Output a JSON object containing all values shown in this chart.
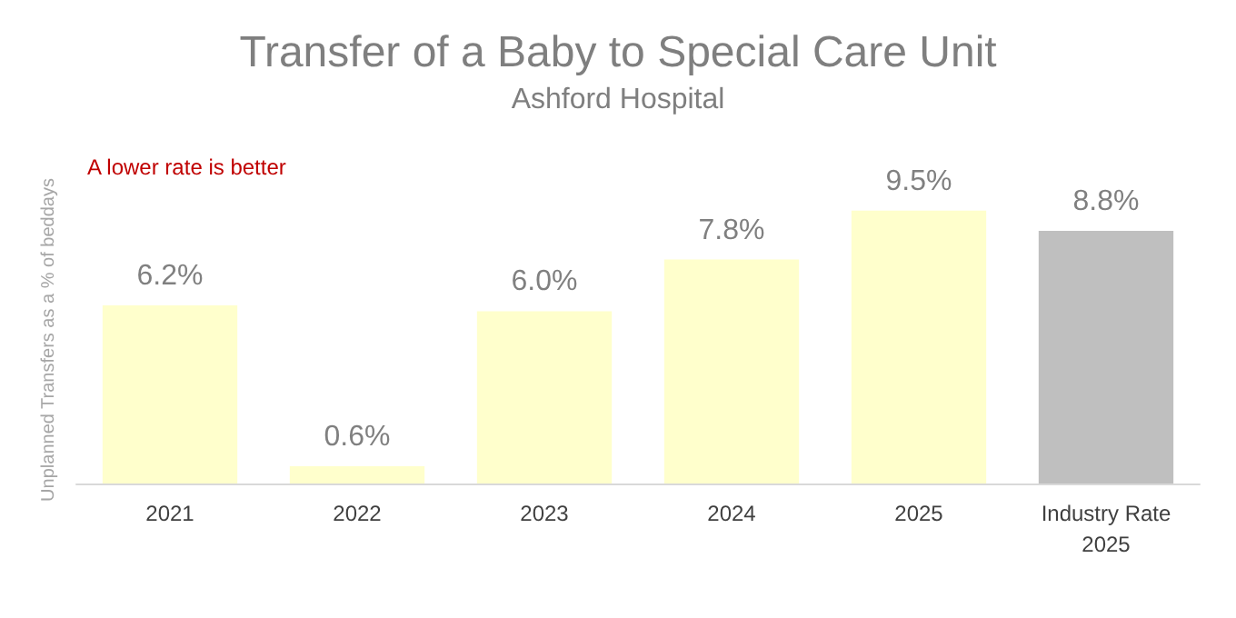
{
  "chart_data": {
    "type": "bar",
    "title": "Transfer of a Baby to Special Care Unit",
    "subtitle": "Ashford Hospital",
    "ylabel": "Unplanned Transfers as a % of beddays",
    "categories": [
      "2021",
      "2022",
      "2023",
      "2024",
      "2025",
      "Industry Rate\n2025"
    ],
    "values": [
      6.2,
      0.6,
      6.0,
      7.8,
      9.5,
      8.8
    ],
    "colors": [
      "#ffffcc",
      "#ffffcc",
      "#ffffcc",
      "#ffffcc",
      "#ffffcc",
      "#bfbfbf"
    ],
    "value_labels": [
      "6.2%",
      "0.6%",
      "6.0%",
      "7.8%",
      "9.5%",
      "8.8%"
    ],
    "annotations": [
      "A lower rate is better"
    ],
    "grid": false
  }
}
